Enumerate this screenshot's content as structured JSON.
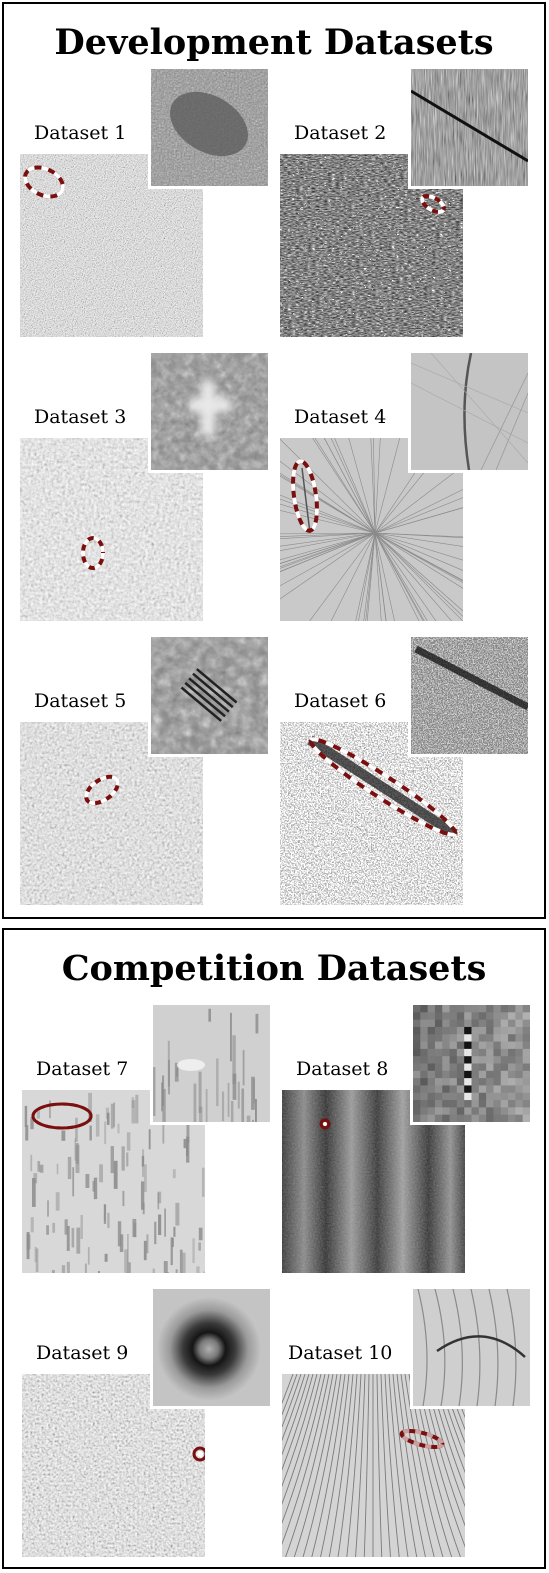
{
  "panels": {
    "development": {
      "title": "Development Datasets",
      "datasets": [
        {
          "label": "Dataset 1",
          "style": "fine-noise"
        },
        {
          "label": "Dataset 2",
          "style": "streak-noise"
        },
        {
          "label": "Dataset 3",
          "style": "blur-noise"
        },
        {
          "label": "Dataset 4",
          "style": "radial-lines"
        },
        {
          "label": "Dataset 5",
          "style": "blur-noise"
        },
        {
          "label": "Dataset 6",
          "style": "salt-pepper"
        }
      ]
    },
    "competition": {
      "title": "Competition Datasets",
      "datasets": [
        {
          "label": "Dataset 7",
          "style": "light-streaks"
        },
        {
          "label": "Dataset 8",
          "style": "stripes"
        },
        {
          "label": "Dataset 9",
          "style": "blur-noise"
        },
        {
          "label": "Dataset 10",
          "style": "curves"
        }
      ]
    }
  },
  "colors": {
    "marker_outer": "#7a0f0f",
    "marker_dash": "#ffffff",
    "frame": "#000000"
  }
}
